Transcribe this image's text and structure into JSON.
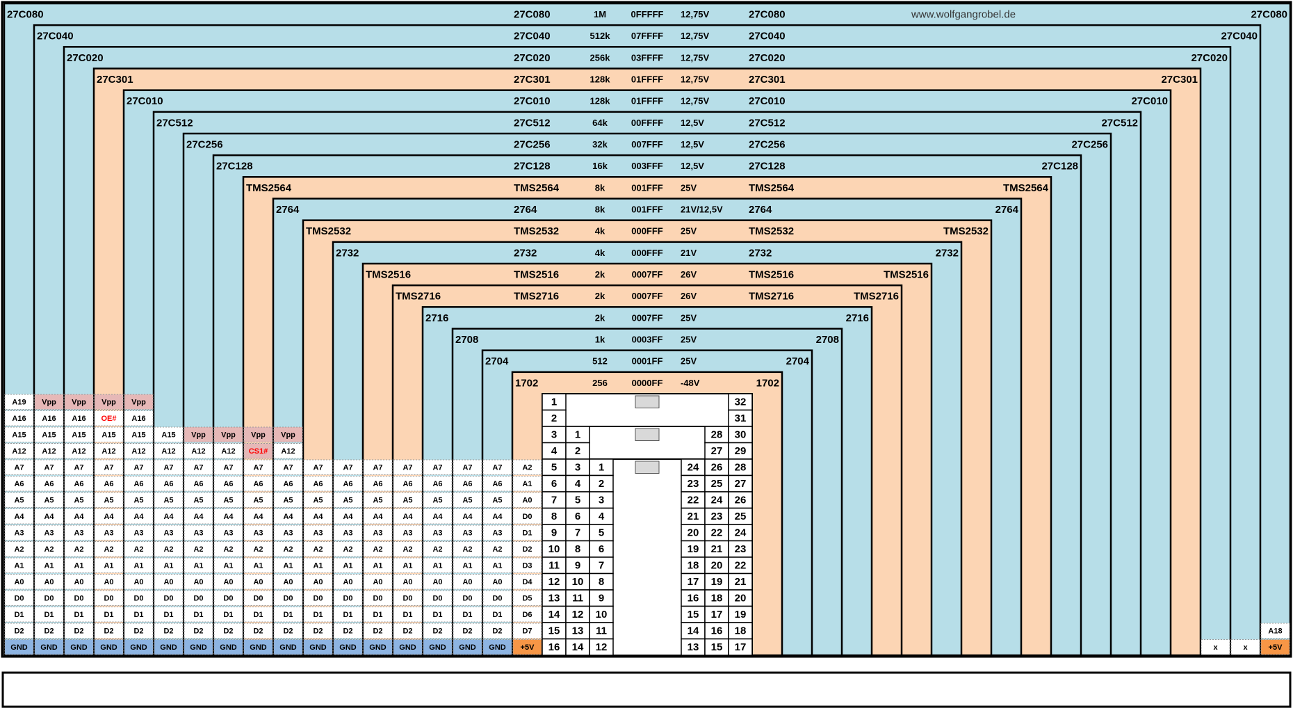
{
  "chips": [
    {
      "name": "27C080",
      "size": "1M",
      "end_address": "0FFFFF",
      "vpp": "12,75V",
      "color": "#b7dee8"
    },
    {
      "name": "27C040",
      "size": "512k",
      "end_address": "07FFFF",
      "vpp": "12,75V",
      "color": "#b7dee8"
    },
    {
      "name": "27C020",
      "size": "256k",
      "end_address": "03FFFF",
      "vpp": "12,75V",
      "color": "#b7dee8"
    },
    {
      "name": "27C301",
      "size": "128k",
      "end_address": "01FFFF",
      "vpp": "12,75V",
      "color": "#fcd5b4"
    },
    {
      "name": "27C010",
      "size": "128k",
      "end_address": "01FFFF",
      "vpp": "12,75V",
      "color": "#b7dee8"
    },
    {
      "name": "27C512",
      "size": "64k",
      "end_address": "00FFFF",
      "vpp": "12,5V",
      "color": "#b7dee8"
    },
    {
      "name": "27C256",
      "size": "32k",
      "end_address": "007FFF",
      "vpp": "12,5V",
      "color": "#b7dee8"
    },
    {
      "name": "27C128",
      "size": "16k",
      "end_address": "003FFF",
      "vpp": "12,5V",
      "color": "#b7dee8"
    },
    {
      "name": "TMS2564",
      "size": "8k",
      "end_address": "001FFF",
      "vpp": "25V",
      "color": "#fcd5b4"
    },
    {
      "name": "2764",
      "size": "8k",
      "end_address": "001FFF",
      "vpp": "21V/12,5V",
      "color": "#b7dee8"
    },
    {
      "name": "TMS2532",
      "size": "4k",
      "end_address": "000FFF",
      "vpp": "25V",
      "color": "#fcd5b4"
    },
    {
      "name": "2732",
      "size": "4k",
      "end_address": "000FFF",
      "vpp": "21V",
      "color": "#b7dee8"
    },
    {
      "name": "TMS2516",
      "size": "2k",
      "end_address": "0007FF",
      "vpp": "26V",
      "color": "#fcd5b4"
    },
    {
      "name": "TMS2716",
      "size": "2k",
      "end_address": "0007FF",
      "vpp": "26V",
      "color": "#fcd5b4"
    },
    {
      "name": "2716",
      "size": "2k",
      "end_address": "0007FF",
      "vpp": "25V",
      "color": "#b7dee8"
    },
    {
      "name": "2708",
      "size": "1k",
      "end_address": "0003FF",
      "vpp": "25V",
      "color": "#b7dee8"
    },
    {
      "name": "2704",
      "size": "512",
      "end_address": "0001FF",
      "vpp": "25V",
      "color": "#b7dee8"
    },
    {
      "name": "1702",
      "size": "256",
      "end_address": "0000FF",
      "vpp": "-48V",
      "color": "#fcd5b4"
    }
  ],
  "website": "www.wolfgangrobel.de",
  "pin_numbers": {
    "left": [
      [
        1,
        2,
        3,
        4,
        5,
        6,
        7,
        8,
        9,
        10,
        11,
        12,
        13,
        14,
        15,
        16
      ],
      [
        1,
        2,
        3,
        4,
        5,
        6,
        7,
        8,
        9,
        10,
        11,
        12,
        13,
        14
      ],
      [
        1,
        2,
        3,
        4,
        5,
        6,
        7,
        8,
        9,
        10,
        11,
        12
      ]
    ],
    "right": [
      [
        24,
        23,
        22,
        21,
        20,
        19,
        18,
        17,
        16,
        15,
        14,
        13
      ],
      [
        28,
        27,
        26,
        25,
        24,
        23,
        22,
        21,
        20,
        19,
        18,
        17,
        16,
        15
      ],
      [
        32,
        31,
        30,
        29,
        28,
        27,
        26,
        25,
        24,
        23,
        22,
        21,
        20,
        19,
        18,
        17
      ]
    ]
  },
  "left_pins": [
    [
      "A19",
      "A16",
      "A15",
      "A12",
      "A7",
      "A6",
      "A5",
      "A4",
      "A3",
      "A2",
      "A1",
      "A0",
      "D0",
      "D1",
      "D2",
      {
        "text": "GND",
        "fill": "#8db4e2"
      }
    ],
    [
      {
        "text": "Vpp",
        "fill": "#e6b8b7"
      },
      "A16",
      "A15",
      "A12",
      "A7",
      "A6",
      "A5",
      "A4",
      "A3",
      "A2",
      "A1",
      "A0",
      "D0",
      "D1",
      "D2",
      {
        "text": "GND",
        "fill": "#8db4e2"
      }
    ],
    [
      {
        "text": "Vpp",
        "fill": "#e6b8b7"
      },
      "A16",
      "A15",
      "A12",
      "A7",
      "A6",
      "A5",
      "A4",
      "A3",
      "A2",
      "A1",
      "A0",
      "D0",
      "D1",
      "D2",
      {
        "text": "GND",
        "fill": "#8db4e2"
      }
    ],
    [
      {
        "text": "Vpp",
        "fill": "#e6b8b7"
      },
      {
        "text": "OE#",
        "fill": "#ffffff",
        "color": "#ff0000"
      },
      "A15",
      "A12",
      "A7",
      "A6",
      "A5",
      "A4",
      "A3",
      "A2",
      "A1",
      "A0",
      "D0",
      "D1",
      "D2",
      {
        "text": "GND",
        "fill": "#8db4e2"
      }
    ],
    [
      {
        "text": "Vpp",
        "fill": "#e6b8b7"
      },
      "A16",
      "A15",
      "A12",
      "A7",
      "A6",
      "A5",
      "A4",
      "A3",
      "A2",
      "A1",
      "A0",
      "D0",
      "D1",
      "D2",
      {
        "text": "GND",
        "fill": "#8db4e2"
      }
    ],
    [
      "A15",
      "A12",
      "A7",
      "A6",
      "A5",
      "A4",
      "A3",
      "A2",
      "A1",
      "A0",
      "D0",
      "D1",
      "D2",
      {
        "text": "GND",
        "fill": "#8db4e2"
      }
    ],
    [
      {
        "text": "Vpp",
        "fill": "#e6b8b7"
      },
      "A12",
      "A7",
      "A6",
      "A5",
      "A4",
      "A3",
      "A2",
      "A1",
      "A0",
      "D0",
      "D1",
      "D2",
      {
        "text": "GND",
        "fill": "#8db4e2"
      }
    ],
    [
      {
        "text": "Vpp",
        "fill": "#e6b8b7"
      },
      "A12",
      "A7",
      "A6",
      "A5",
      "A4",
      "A3",
      "A2",
      "A1",
      "A0",
      "D0",
      "D1",
      "D2",
      {
        "text": "GND",
        "fill": "#8db4e2"
      }
    ],
    [
      {
        "text": "Vpp",
        "fill": "#e6b8b7"
      },
      {
        "text": "CS1#",
        "fill": "#e6b8b7",
        "color": "#ff0000"
      },
      "A7",
      "A6",
      "A5",
      "A4",
      "A3",
      "A2",
      "A1",
      "A0",
      "D0",
      "D1",
      "D2",
      {
        "text": "GND",
        "fill": "#8db4e2"
      }
    ],
    [
      {
        "text": "Vpp",
        "fill": "#e6b8b7"
      },
      "A12",
      "A7",
      "A6",
      "A5",
      "A4",
      "A3",
      "A2",
      "A1",
      "A0",
      "D0",
      "D1",
      "D2",
      {
        "text": "GND",
        "fill": "#8db4e2"
      }
    ],
    [
      "A7",
      "A6",
      "A5",
      "A4",
      "A3",
      "A2",
      "A1",
      "A0",
      "D0",
      "D1",
      "D2",
      {
        "text": "GND",
        "fill": "#8db4e2"
      }
    ],
    [
      "A7",
      "A6",
      "A5",
      "A4",
      "A3",
      "A2",
      "A1",
      "A0",
      "D0",
      "D1",
      "D2",
      {
        "text": "GND",
        "fill": "#8db4e2"
      }
    ],
    [
      "A7",
      "A6",
      "A5",
      "A4",
      "A3",
      "A2",
      "A1",
      "A0",
      "D0",
      "D1",
      "D2",
      {
        "text": "GND",
        "fill": "#8db4e2"
      }
    ],
    [
      "A7",
      "A6",
      "A5",
      "A4",
      "A3",
      "A2",
      "A1",
      "A0",
      "D0",
      "D1",
      "D2",
      {
        "text": "GND",
        "fill": "#8db4e2"
      }
    ],
    [
      "A7",
      "A6",
      "A5",
      "A4",
      "A3",
      "A2",
      "A1",
      "A0",
      "D0",
      "D1",
      "D2",
      {
        "text": "GND",
        "fill": "#8db4e2"
      }
    ],
    [
      "A7",
      "A6",
      "A5",
      "A4",
      "A3",
      "A2",
      "A1",
      "A0",
      "D0",
      "D1",
      "D2",
      {
        "text": "GND",
        "fill": "#8db4e2"
      }
    ],
    [
      "A7",
      "A6",
      "A5",
      "A4",
      "A3",
      "A2",
      "A1",
      "A0",
      "D0",
      "D1",
      "D2",
      {
        "text": "GND",
        "fill": "#8db4e2"
      }
    ],
    [
      "A2",
      "A1",
      "A0",
      "D0",
      "D1",
      "D2",
      "D3",
      "D4",
      "D5",
      "D6",
      "D7",
      {
        "text": "+5V",
        "fill": "#f79646"
      }
    ]
  ],
  "right_pins": [
    [
      "A18",
      {
        "text": "+5V",
        "fill": "#f79646"
      }
    ],
    [
      "x"
    ],
    [
      "x"
    ]
  ]
}
